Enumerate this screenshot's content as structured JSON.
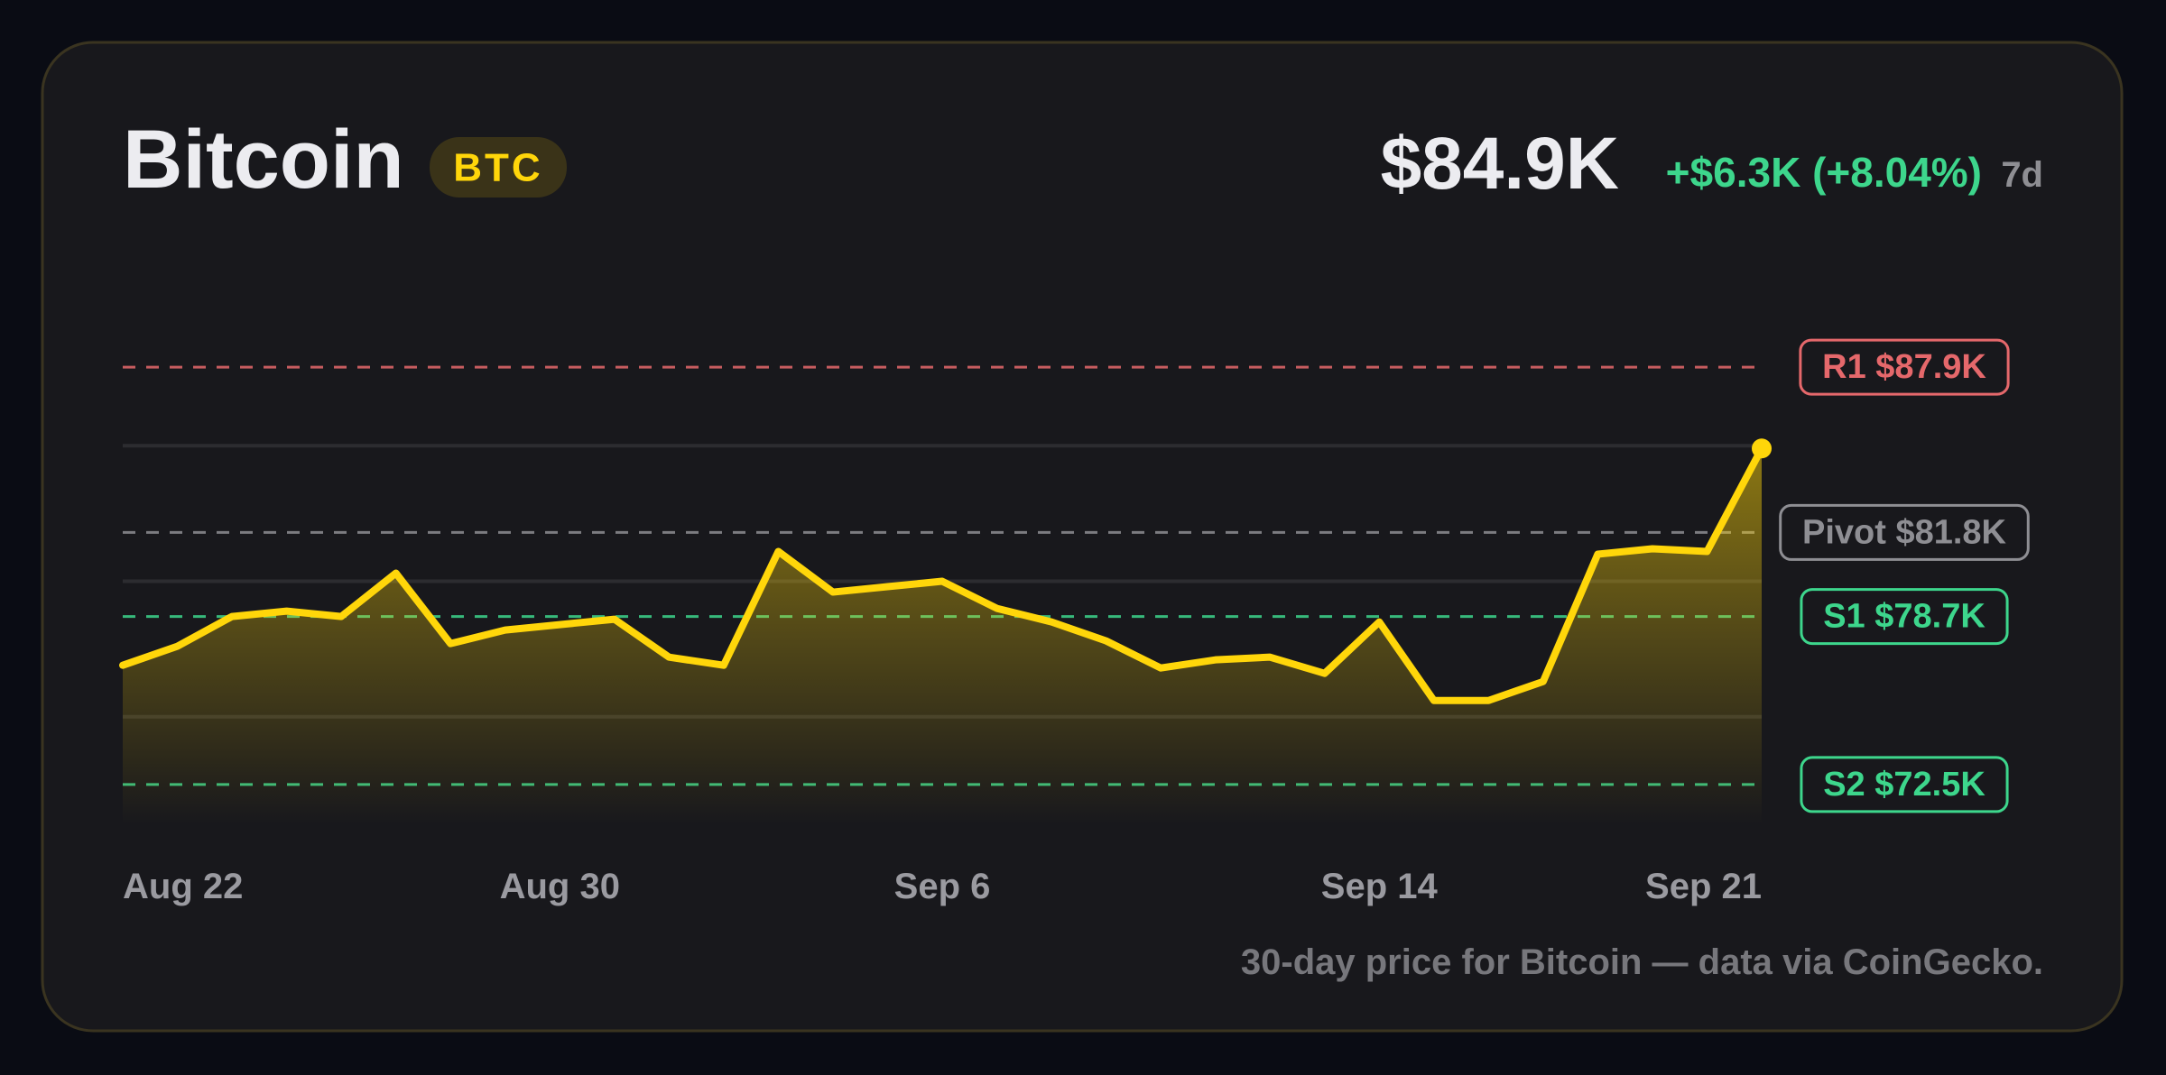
{
  "header": {
    "title": "Bitcoin",
    "ticker": "BTC",
    "price": "$84.9K",
    "change": "+$6.3K (+8.04%)",
    "period": "7d"
  },
  "chart_data": {
    "type": "area",
    "x": [
      "Aug 22",
      null,
      null,
      null,
      null,
      null,
      null,
      null,
      "Aug 30",
      null,
      null,
      null,
      null,
      null,
      null,
      "Sep 6",
      null,
      null,
      null,
      null,
      null,
      null,
      null,
      "Sep 14",
      null,
      null,
      null,
      null,
      null,
      null,
      "Sep 21"
    ],
    "series": [
      {
        "name": "Bitcoin",
        "color": "#ffd60a",
        "values": [
          76.9,
          77.6,
          78.7,
          78.9,
          78.7,
          80.3,
          77.7,
          78.2,
          78.4,
          78.6,
          77.2,
          76.9,
          81.1,
          79.6,
          79.8,
          80.0,
          79.0,
          78.5,
          77.8,
          76.8,
          77.1,
          77.2,
          76.6,
          78.5,
          75.6,
          75.6,
          76.3,
          81.0,
          81.2,
          81.1,
          84.9
        ]
      }
    ],
    "ylim": [
      71,
      90
    ],
    "yticks": [
      75,
      80,
      85
    ],
    "grid": true,
    "levels": [
      {
        "name": "R1",
        "value": 87.9,
        "value_label": "$87.9K",
        "color": "#e5686b"
      },
      {
        "name": "Pivot",
        "value": 81.8,
        "value_label": "$81.8K",
        "color": "#8e8e93"
      },
      {
        "name": "S1",
        "value": 78.7,
        "value_label": "$78.7K",
        "color": "#3dd68c"
      },
      {
        "name": "S2",
        "value": 72.5,
        "value_label": "$72.5K",
        "color": "#3dd68c"
      }
    ],
    "caption": "30-day price for Bitcoin — data via CoinGecko."
  }
}
